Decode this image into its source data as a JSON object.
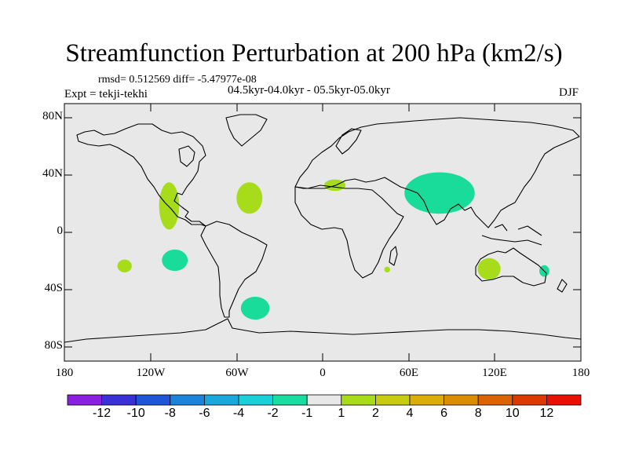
{
  "title": "Streamfunction Perturbation at 200 hPa (km2/s)",
  "stats": "rmsd= 0.512569 diff= -5.47977e-08",
  "period": "04.5kyr-04.0kyr - 05.5kyr-05.0kyr",
  "experiment": "Expt = tekji-tekhi",
  "season": "DJF",
  "chart_data": {
    "type": "heatmap",
    "projection": "cylindrical equidistant",
    "xlim": [
      -180,
      180
    ],
    "ylim": [
      -90,
      90
    ],
    "x_ticks": [
      -180,
      -120,
      -60,
      0,
      60,
      120,
      180
    ],
    "x_tick_labels": [
      "180",
      "120W",
      "60W",
      "0",
      "60E",
      "120E",
      "180"
    ],
    "y_ticks": [
      80,
      40,
      0,
      -40,
      -80
    ],
    "y_tick_labels": [
      "80N",
      "40N",
      "0",
      "40S",
      "80S"
    ],
    "colorbar": {
      "labels": [
        "-12",
        "-10",
        "-8",
        "-6",
        "-4",
        "-2",
        "-1",
        "1",
        "2",
        "4",
        "6",
        "8",
        "10",
        "12"
      ],
      "colors": [
        "#8a1fe0",
        "#3a30d8",
        "#1f56d8",
        "#1a84dc",
        "#1aa8dc",
        "#1ad0d8",
        "#18dca0",
        "#e8e8e8",
        "#a8dc18",
        "#c8cc10",
        "#dcac08",
        "#dc8c00",
        "#dc6400",
        "#dc3a00",
        "#e81000"
      ]
    },
    "regions": [
      {
        "name": "north-mexico-positive",
        "sign": "positive",
        "level": "1 to 2",
        "color": "#a6dc1a",
        "lon_range": [
          -114,
          -100
        ],
        "lat_range": [
          2,
          35
        ]
      },
      {
        "name": "north-atlantic-positive",
        "sign": "positive",
        "level": "1 to 2",
        "color": "#a6dc1a",
        "lon_range": [
          -60,
          -42
        ],
        "lat_range": [
          13,
          35
        ]
      },
      {
        "name": "mediterranean-positive",
        "sign": "positive",
        "level": "1 to 2",
        "color": "#a6dc1a",
        "lon_range": [
          1,
          16
        ],
        "lat_range": [
          29,
          37
        ]
      },
      {
        "name": "asia-negative",
        "sign": "negative",
        "level": "-2 to -1",
        "color": "#1adc9a",
        "lon_range": [
          57,
          106
        ],
        "lat_range": [
          13,
          42
        ]
      },
      {
        "name": "south-pacific-west-positive",
        "sign": "positive",
        "level": "1 to 2",
        "color": "#a6dc1a",
        "lon_range": [
          -143,
          -133
        ],
        "lat_range": [
          -28,
          -19
        ]
      },
      {
        "name": "south-pacific-negative",
        "sign": "negative",
        "level": "-2 to -1",
        "color": "#1adc9a",
        "lon_range": [
          -112,
          -94
        ],
        "lat_range": [
          -27,
          -12
        ]
      },
      {
        "name": "south-atlantic-negative",
        "sign": "negative",
        "level": "-2 to -1",
        "color": "#1adc9a",
        "lon_range": [
          -57,
          -37
        ],
        "lat_range": [
          -61,
          -45
        ]
      },
      {
        "name": "madagascar-positive",
        "sign": "positive",
        "level": "1 to 2",
        "color": "#a6dc1a",
        "lon_range": [
          43,
          47
        ],
        "lat_range": [
          -28,
          -24
        ]
      },
      {
        "name": "australia-positive",
        "sign": "positive",
        "level": "1 to 2",
        "color": "#a6dc1a",
        "lon_range": [
          108,
          124
        ],
        "lat_range": [
          -33,
          -18
        ]
      },
      {
        "name": "east-australia-negative",
        "sign": "negative",
        "level": "-2 to -1",
        "color": "#1adc9a",
        "lon_range": [
          151,
          158
        ],
        "lat_range": [
          -31,
          -23
        ]
      }
    ]
  }
}
